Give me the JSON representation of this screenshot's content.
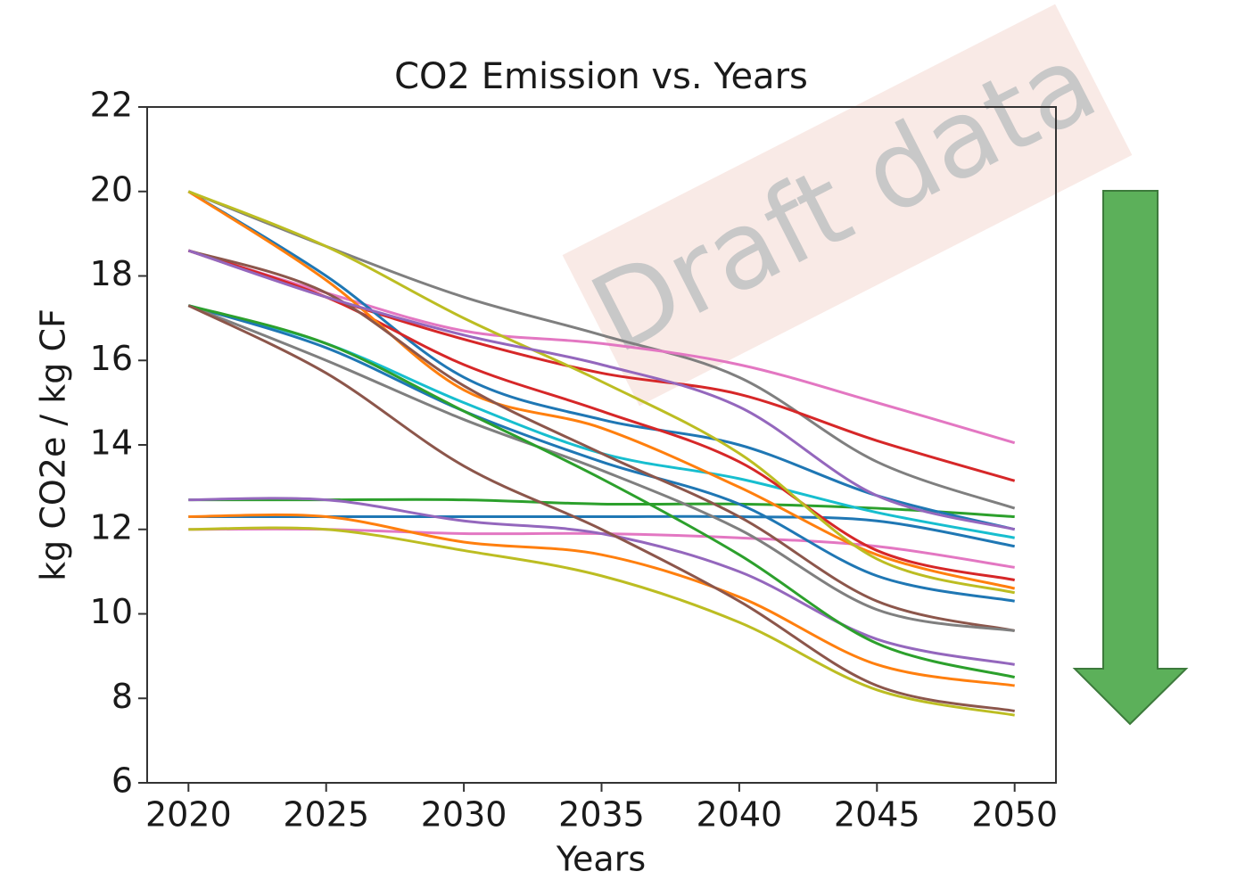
{
  "chart_data": {
    "type": "line",
    "title": "CO2 Emission vs. Years",
    "x_label": "Years",
    "y_label": "kg CO2e / kg CF",
    "watermark": "Draft data",
    "x": [
      2020,
      2025,
      2030,
      2035,
      2040,
      2045,
      2050
    ],
    "xlim": [
      2018.5,
      2051.5
    ],
    "xticks": [
      2020,
      2025,
      2030,
      2035,
      2040,
      2045,
      2050
    ],
    "ylim": [
      6,
      22
    ],
    "yticks": [
      6,
      8,
      10,
      12,
      14,
      16,
      18,
      20,
      22
    ],
    "series": [
      {
        "color": "#7f7f7f",
        "values": [
          20,
          18.7,
          17.5,
          16.6,
          15.6,
          13.6,
          12.5
        ]
      },
      {
        "color": "#e377c2",
        "values": [
          18.6,
          17.6,
          16.7,
          16.4,
          15.9,
          15.0,
          14.05
        ]
      },
      {
        "color": "#d62728",
        "values": [
          18.6,
          17.5,
          16.5,
          15.7,
          15.2,
          14.1,
          13.15
        ]
      },
      {
        "color": "#2ca02c",
        "values": [
          12.7,
          12.7,
          12.7,
          12.6,
          12.6,
          12.5,
          12.3
        ]
      },
      {
        "color": "#1f77b4",
        "values": [
          20,
          18,
          15.6,
          14.6,
          14.0,
          12.8,
          12.0
        ]
      },
      {
        "color": "#17becf",
        "values": [
          17.3,
          16.4,
          15.0,
          13.8,
          13.2,
          12.4,
          11.8
        ]
      },
      {
        "color": "#1f77b4",
        "values": [
          12.3,
          12.3,
          12.3,
          12.3,
          12.3,
          12.2,
          11.6
        ]
      },
      {
        "color": "#e377c2",
        "values": [
          12.0,
          12.0,
          11.9,
          11.9,
          11.8,
          11.6,
          11.1
        ]
      },
      {
        "color": "#d62728",
        "values": [
          18.6,
          17.5,
          15.9,
          14.8,
          13.6,
          11.5,
          10.8
        ]
      },
      {
        "color": "#ff7f0e",
        "values": [
          20,
          17.9,
          15.3,
          14.4,
          13.0,
          11.4,
          10.6
        ]
      },
      {
        "color": "#bcbd22",
        "values": [
          20,
          18.7,
          17.0,
          15.5,
          13.8,
          11.3,
          10.5
        ]
      },
      {
        "color": "#1f77b4",
        "values": [
          17.3,
          16.3,
          14.8,
          13.6,
          12.6,
          10.9,
          10.3
        ]
      },
      {
        "color": "#8c564b",
        "values": [
          18.6,
          17.6,
          15.4,
          13.8,
          12.3,
          10.3,
          9.6
        ]
      },
      {
        "color": "#7f7f7f",
        "values": [
          17.3,
          16.0,
          14.6,
          13.4,
          12.0,
          10.1,
          9.6
        ]
      },
      {
        "color": "#9467bd",
        "values": [
          12.7,
          12.7,
          12.2,
          11.9,
          11.0,
          9.4,
          8.8
        ]
      },
      {
        "color": "#2ca02c",
        "values": [
          17.3,
          16.4,
          14.8,
          13.2,
          11.4,
          9.3,
          8.5
        ]
      },
      {
        "color": "#ff7f0e",
        "values": [
          12.3,
          12.3,
          11.7,
          11.4,
          10.4,
          8.8,
          8.3
        ]
      },
      {
        "color": "#bcbd22",
        "values": [
          12.0,
          12.0,
          11.5,
          10.9,
          9.8,
          8.2,
          7.6
        ]
      },
      {
        "color": "#8c564b",
        "values": [
          17.3,
          15.7,
          13.5,
          12.0,
          10.3,
          8.3,
          7.7
        ]
      },
      {
        "color": "#9467bd",
        "values": [
          18.6,
          17.5,
          16.6,
          15.9,
          14.9,
          12.8,
          12.0
        ]
      }
    ]
  }
}
